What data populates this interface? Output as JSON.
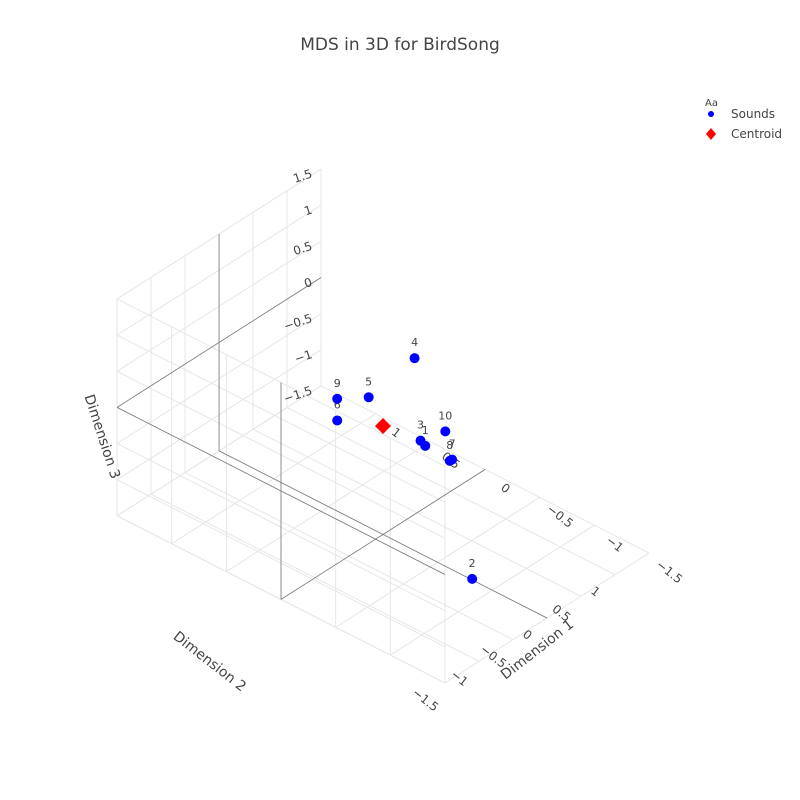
{
  "chart_data": {
    "type": "scatter3d",
    "title": "MDS in 3D for BirdSong",
    "axes": {
      "x": {
        "label": "Dimension 1",
        "ticks": [
          "−1.5",
          "−1",
          "−0.5",
          "0",
          "0.5",
          "1"
        ]
      },
      "y": {
        "label": "Dimension 2",
        "ticks": [
          "−1.5",
          "−1",
          "−0.5",
          "0",
          "0.5",
          "1"
        ]
      },
      "z": {
        "label": "Dimension 3",
        "ticks": [
          "−1.5",
          "−1",
          "−0.5",
          "0",
          "0.5",
          "1",
          "1.5"
        ]
      }
    },
    "legend": {
      "title": "Aa",
      "placement": "top-right",
      "items": [
        {
          "name": "Sounds",
          "color": "#0000ff",
          "symbol": "circle"
        },
        {
          "name": "Centroid",
          "color": "#ff0000",
          "symbol": "diamond"
        }
      ]
    },
    "series": [
      {
        "name": "Sounds",
        "color": "#0000ff",
        "points": [
          {
            "label": "1",
            "x": -0.2,
            "y": 0.3,
            "z": -0.3
          },
          {
            "label": "2",
            "x": -1.5,
            "y": -1.1,
            "z": -0.3
          },
          {
            "label": "3",
            "x": -0.25,
            "y": 0.15,
            "z": -0.1
          },
          {
            "label": "4",
            "x": -0.6,
            "y": -0.5,
            "z": 1.7
          },
          {
            "label": "5",
            "x": 0.1,
            "y": -0.05,
            "z": 0.35
          },
          {
            "label": "6",
            "x": 0.45,
            "y": 0.05,
            "z": -0.3
          },
          {
            "label": "7",
            "x": -0.85,
            "y": -0.35,
            "z": 0.4
          },
          {
            "label": "8",
            "x": -0.3,
            "y": 0.5,
            "z": -0.55
          },
          {
            "label": "9",
            "x": 0.45,
            "y": 0.05,
            "z": 0.0
          },
          {
            "label": "10",
            "x": -0.85,
            "y": -0.45,
            "z": 0.85
          }
        ]
      },
      {
        "name": "Centroid",
        "color": "#ff0000",
        "points": [
          {
            "label": "",
            "x": 0.0,
            "y": 0.0,
            "z": 0.0
          }
        ]
      }
    ]
  }
}
